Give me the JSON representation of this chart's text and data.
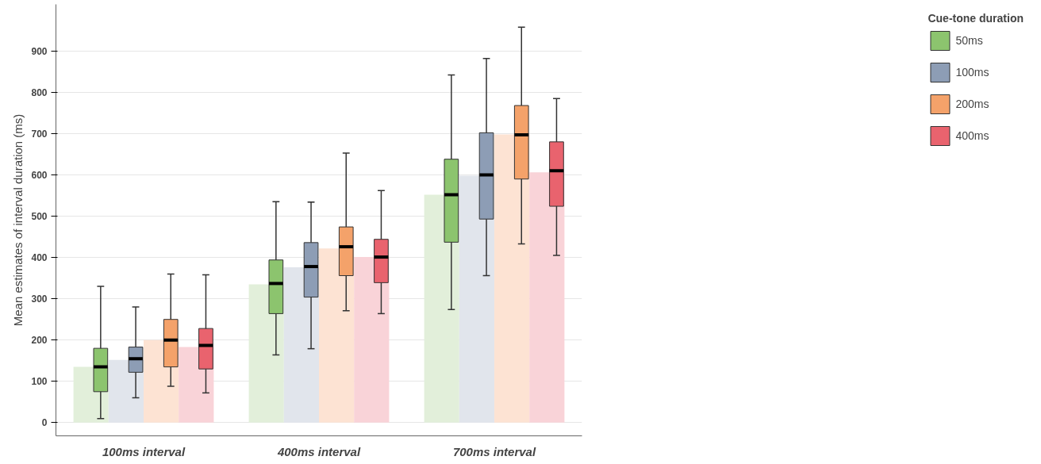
{
  "chart_data": {
    "type": "bar",
    "ylabel": "Mean estimates of interval duration (ms)",
    "legend_title": "Cue-tone duration",
    "categories": [
      "100ms interval",
      "400ms interval",
      "700ms interval"
    ],
    "ylim": [
      -32,
      1013
    ],
    "yticks": [
      0,
      100,
      200,
      300,
      400,
      500,
      600,
      700,
      800,
      900
    ],
    "grid": "y",
    "legend": "top right",
    "series": [
      {
        "color": "#e2efda",
        "values": [
          135,
          335,
          552
        ]
      },
      {
        "color": "#e1e5ec",
        "values": [
          152,
          376,
          598
        ]
      },
      {
        "color": "#fde3d3",
        "values": [
          200,
          422,
          698
        ]
      },
      {
        "color": "#f9d3d8",
        "values": [
          183,
          401,
          606
        ]
      },
      {
        "type": "box",
        "name": "50ms",
        "color": "#8cc46e",
        "boxes": [
          {
            "low": 10,
            "q1": 75,
            "median": 135,
            "q3": 180,
            "high": 330
          },
          {
            "low": 164,
            "q1": 264,
            "median": 337,
            "q3": 394,
            "high": 535
          },
          {
            "low": 274,
            "q1": 437,
            "median": 552,
            "q3": 638,
            "high": 842
          }
        ]
      },
      {
        "type": "box",
        "name": "100ms",
        "color": "#8d9db5",
        "boxes": [
          {
            "low": 60,
            "q1": 122,
            "median": 155,
            "q3": 183,
            "high": 280
          },
          {
            "low": 179,
            "q1": 304,
            "median": 378,
            "q3": 436,
            "high": 534
          },
          {
            "low": 356,
            "q1": 493,
            "median": 600,
            "q3": 702,
            "high": 882
          }
        ]
      },
      {
        "type": "box",
        "name": "200ms",
        "color": "#f4a26a",
        "boxes": [
          {
            "low": 88,
            "q1": 135,
            "median": 200,
            "q3": 250,
            "high": 360
          },
          {
            "low": 271,
            "q1": 356,
            "median": 426,
            "q3": 474,
            "high": 653
          },
          {
            "low": 433,
            "q1": 590,
            "median": 697,
            "q3": 768,
            "high": 958
          }
        ]
      },
      {
        "type": "box",
        "name": "400ms",
        "color": "#e9636e",
        "boxes": [
          {
            "low": 72,
            "q1": 130,
            "median": 187,
            "q3": 228,
            "high": 358
          },
          {
            "low": 264,
            "q1": 339,
            "median": 401,
            "q3": 444,
            "high": 562
          },
          {
            "low": 405,
            "q1": 524,
            "median": 610,
            "q3": 680,
            "high": 785
          }
        ]
      }
    ]
  }
}
